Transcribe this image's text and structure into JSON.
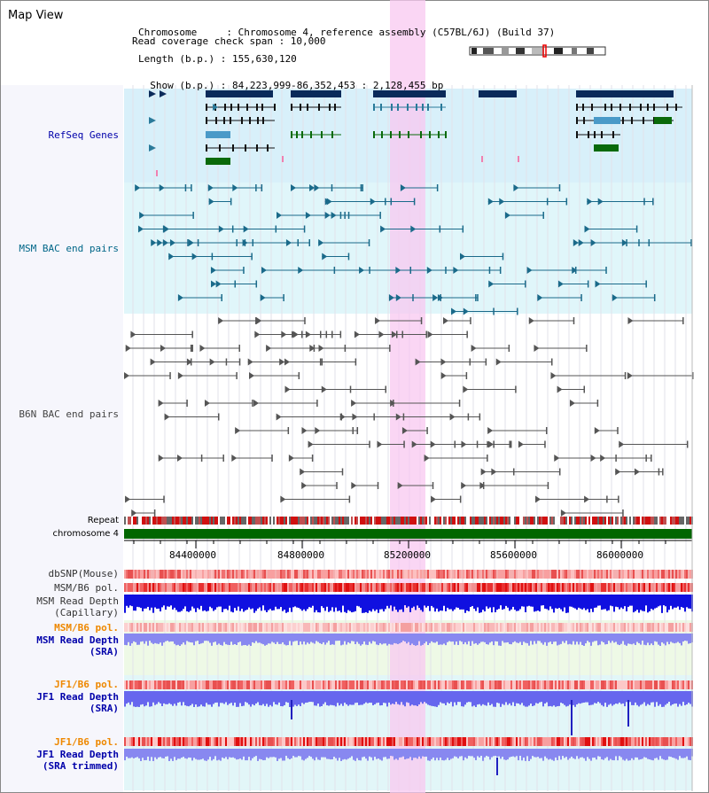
{
  "title": "Map View",
  "info": {
    "line1": "Chromosome     : Chromosome 4, reference assembly (C57BL/6J) (Build 37)",
    "line2": "Length (b.p.) : 155,630,120",
    "line3": "  Show (b.p.) : 84,223,999-86,352,453 : 2,128,455 bp",
    "line4": "Read coverage check span : 10,000"
  },
  "tracks": {
    "refseq": "RefSeq Genes",
    "msm_bac": "MSM BAC end pairs",
    "b6n_bac": "B6N BAC end pairs",
    "repeat": "Repeat",
    "chromosome": "chromosome 4",
    "dbsnp": "dbSNP(Mouse)",
    "msm_b6_pol": "MSM/B6 pol.",
    "msm_depth_cap_1": "MSM Read Depth",
    "msm_depth_cap_2": "(Capillary)",
    "msm_b6_pol_2": "MSM/B6 pol.",
    "msm_depth_sra_1": "MSM Read Depth",
    "msm_depth_sra_2": "(SRA)",
    "jf1_b6_pol": "JF1/B6 pol.",
    "jf1_depth_sra_1": "JF1 Read Depth",
    "jf1_depth_sra_2": "(SRA)",
    "jf1_b6_pol_2": "JF1/B6 pol.",
    "jf1_depth_trim_1": "JF1 Read Depth",
    "jf1_depth_trim_2": "(SRA trimmed)"
  },
  "axis_ticks": [
    "84400000",
    "84800000",
    "85200000",
    "85600000",
    "86000000"
  ],
  "colors": {
    "label_blue": "#0000aa",
    "label_teal": "#006688",
    "label_orange": "#ee8800",
    "highlight": "#f8c8f0",
    "refseq_bg": "#d8f0fa",
    "msm_bac_bg": "#e0f6fa",
    "chromosome_bar": "#006600",
    "gene_dark": "#0a2a5a",
    "gene_mid": "#4a9ac8",
    "gene_green": "#0a6a0a"
  }
}
